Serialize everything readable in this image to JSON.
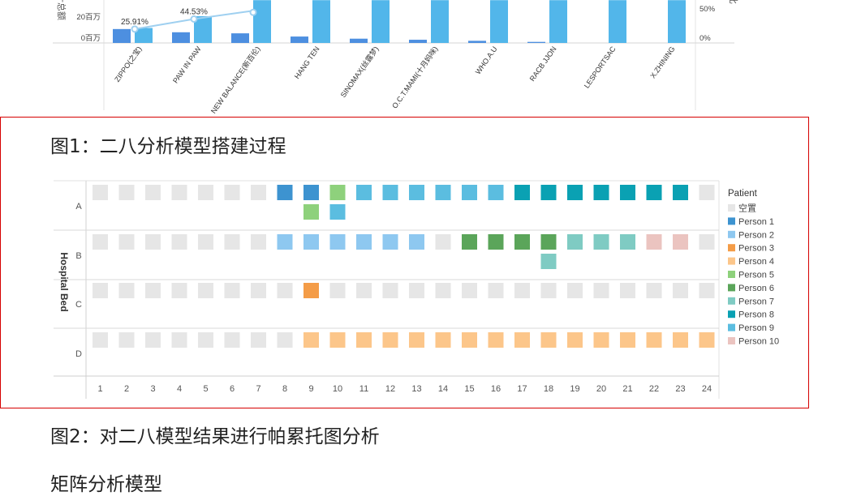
{
  "captions": {
    "figure1": "图1：二八分析模型搭建过程",
    "figure2": "图2：对二八模型结果进行帕累托图分析",
    "section_heading": "矩阵分析模型"
  },
  "top_chart": {
    "left_axis_label": "计总额",
    "right_axis_label": "比",
    "left_ticks": [
      "20百万",
      "0百万"
    ],
    "right_ticks": [
      "50%",
      "0%"
    ],
    "line_labels": [
      "25.91%",
      "44.53%"
    ],
    "colors": {
      "bar_dark": "#4d8fe0",
      "bar_light": "#52b6ea",
      "line": "#9fd0f0"
    }
  },
  "chart_data": [
    {
      "type": "bar",
      "title": "",
      "categories": [
        "ZIPPO(之宝)",
        "PAW IN PAW",
        "NEW BALANCE(新百伦)",
        "HANG TEN",
        "SINOMAX(丝露梦)",
        "O.C.T.MAMI(十月妈咪)",
        "WHO.A.U",
        "RACB JJON",
        "LESPORTSAC",
        "X.ZHINING"
      ],
      "series": [
        {
          "values": [
            13,
            10,
            9,
            6,
            4,
            3,
            2,
            1,
            0,
            0
          ]
        },
        {
          "values": [
            14,
            25,
            40,
            40,
            40,
            40,
            40,
            40,
            40,
            40
          ]
        }
      ],
      "line_series": {
        "values": [
          25.91,
          44.53,
          60
        ]
      },
      "ylim": [
        0,
        40
      ],
      "y2lim": [
        0,
        80
      ]
    },
    {
      "type": "heatmap",
      "title": "",
      "x": [
        1,
        2,
        3,
        4,
        5,
        6,
        7,
        8,
        9,
        10,
        11,
        12,
        13,
        14,
        15,
        16,
        17,
        18,
        19,
        20,
        21,
        22,
        23,
        24
      ],
      "y": [
        "A",
        "B",
        "C",
        "D"
      ],
      "ylabel": "Hospital Bed",
      "legend_title": "Patient",
      "legend": [
        "空置",
        "Person 1",
        "Person 2",
        "Person 3",
        "Person 4",
        "Person 5",
        "Person 6",
        "Person 7",
        "Person 8",
        "Person 9",
        "Person 10"
      ],
      "colors": [
        "#e6e6e6",
        "#3d93d0",
        "#8ec8f0",
        "#f49c47",
        "#fcc68a",
        "#8ed17c",
        "#5ba55a",
        "#7fcbc3",
        "#0aa1b3",
        "#5bbde0",
        "#ebc4c0"
      ],
      "rows": [
        [
          0,
          0,
          0,
          0,
          0,
          0,
          0,
          1,
          1,
          5,
          9,
          9,
          9,
          9,
          9,
          9,
          8,
          8,
          8,
          8,
          8,
          8,
          8,
          0
        ],
        [
          0,
          0,
          0,
          0,
          0,
          0,
          0,
          2,
          2,
          2,
          2,
          2,
          2,
          0,
          6,
          6,
          6,
          6,
          7,
          7,
          7,
          10,
          10,
          0
        ],
        [
          0,
          0,
          0,
          0,
          0,
          0,
          0,
          0,
          3,
          0,
          0,
          0,
          0,
          0,
          0,
          0,
          0,
          0,
          0,
          0,
          0,
          0,
          0,
          0
        ],
        [
          0,
          0,
          0,
          0,
          0,
          0,
          0,
          0,
          4,
          4,
          4,
          4,
          4,
          4,
          4,
          4,
          4,
          4,
          4,
          4,
          4,
          4,
          4,
          4
        ]
      ],
      "overflow": [
        {
          "row": "A",
          "x": 9,
          "patient": 5
        },
        {
          "row": "A",
          "x": 10,
          "patient": 9
        },
        {
          "row": "B",
          "x": 18,
          "patient": 7
        }
      ]
    }
  ]
}
